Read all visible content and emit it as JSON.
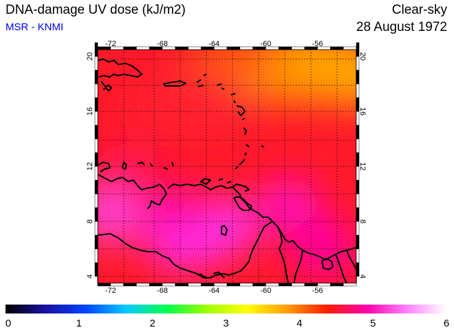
{
  "header": {
    "title": "DNA-damage UV dose (kJ/m2)",
    "subtitle": "MSR - KNMI",
    "sky_condition": "Clear-sky",
    "date": "28 August 1972"
  },
  "map": {
    "lon_range": [
      -73,
      -53
    ],
    "lat_range": [
      3.5,
      20.5
    ],
    "lon_ticks": [
      "-72",
      "-68",
      "-64",
      "-60",
      "-56"
    ],
    "lon_tick_values": [
      -72,
      -68,
      -64,
      -60,
      -56
    ],
    "lat_ticks": [
      "4",
      "8",
      "12",
      "16",
      "20"
    ],
    "lat_tick_values": [
      4,
      8,
      12,
      16,
      20
    ],
    "grid": "dotted every 2 degrees",
    "colors": {
      "background_field": "#ff1a2a",
      "high_dose": "#ff33ee",
      "low_dose": "#ff9900",
      "coastline": "#000000"
    }
  },
  "colorbar": {
    "ticks": [
      "0",
      "1",
      "2",
      "3",
      "4",
      "5",
      "6"
    ],
    "tick_values": [
      0,
      1,
      2,
      3,
      4,
      5,
      6
    ],
    "stops": [
      "#000000",
      "#1a10a0",
      "#0044ff",
      "#00c8ff",
      "#00ff50",
      "#9cff00",
      "#ffff00",
      "#ffa000",
      "#ff1e00",
      "#ff00aa",
      "#ff80ff",
      "#ffffff"
    ]
  }
}
